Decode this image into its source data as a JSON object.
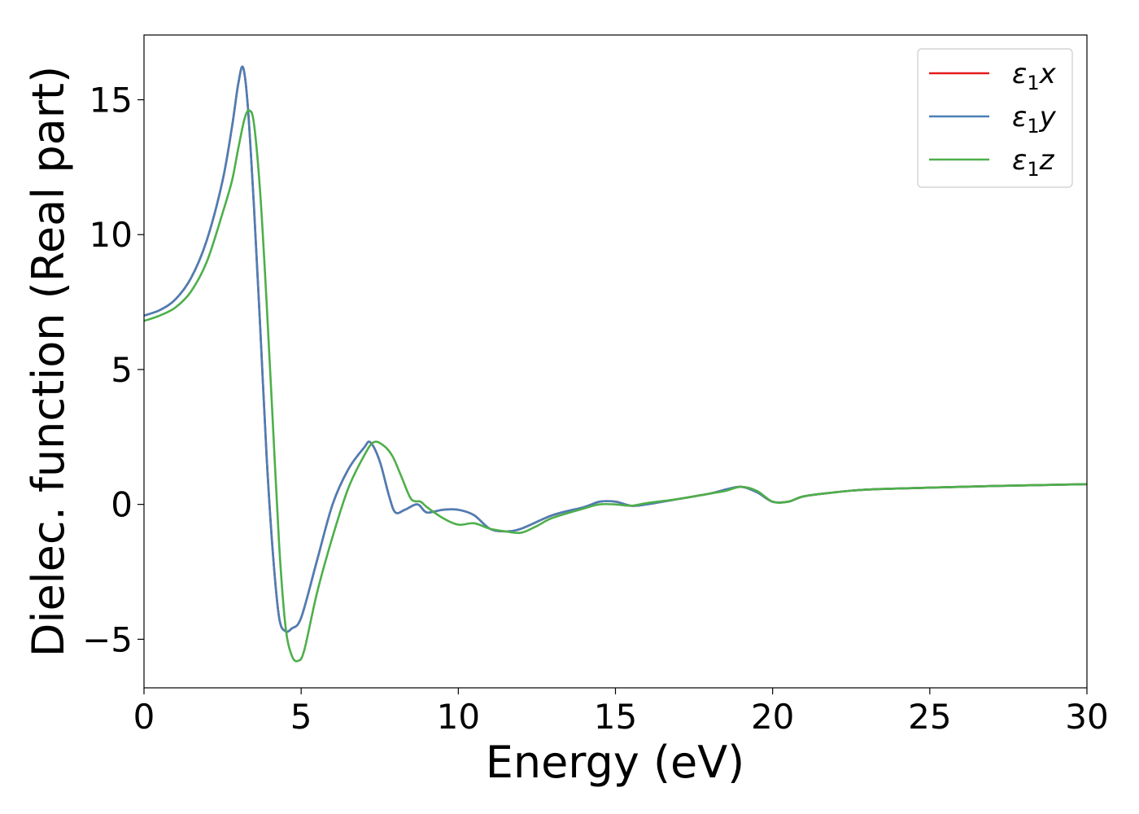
{
  "chart_data": {
    "type": "line",
    "xlabel": "Energy (eV)",
    "ylabel": "Dielec. function (Real part)",
    "xlim": [
      0,
      30
    ],
    "ylim": [
      -6.8,
      17.4
    ],
    "xticks": [
      0,
      5,
      10,
      15,
      20,
      25,
      30
    ],
    "yticks": [
      -5,
      0,
      5,
      10,
      15
    ],
    "xtick_labels": [
      "0",
      "5",
      "10",
      "15",
      "20",
      "25",
      "30"
    ],
    "ytick_labels": [
      "−5",
      "0",
      "5",
      "10",
      "15"
    ],
    "grid": false,
    "legend_position": "top-right",
    "series": [
      {
        "name": "ε1x",
        "legend_base": "ε",
        "legend_sub": "1",
        "legend_suffix": "x",
        "color": "#e41a1c",
        "x": [
          0,
          0.5,
          1.0,
          1.5,
          2.0,
          2.5,
          2.8,
          3.0,
          3.15,
          3.3,
          3.5,
          3.7,
          3.9,
          4.1,
          4.3,
          4.5,
          4.7,
          5.0,
          5.5,
          6.0,
          6.5,
          7.0,
          7.2,
          7.5,
          7.8,
          8.0,
          8.3,
          8.7,
          9.0,
          9.5,
          10.0,
          10.5,
          11.0,
          11.5,
          12.0,
          13.0,
          14.0,
          14.5,
          15.0,
          15.5,
          16.0,
          17.0,
          18.0,
          18.5,
          19.0,
          19.5,
          20.0,
          20.5,
          21.0,
          22.0,
          23.0,
          25.0,
          27.0,
          30.0
        ],
        "y": [
          7.0,
          7.2,
          7.6,
          8.4,
          9.8,
          12.0,
          14.0,
          15.6,
          16.2,
          14.8,
          11.0,
          6.5,
          1.8,
          -1.8,
          -4.2,
          -4.7,
          -4.6,
          -4.2,
          -2.1,
          0.0,
          1.3,
          2.1,
          2.3,
          1.6,
          0.3,
          -0.3,
          -0.2,
          0.0,
          -0.3,
          -0.2,
          -0.2,
          -0.4,
          -0.9,
          -1.0,
          -0.9,
          -0.4,
          -0.1,
          0.1,
          0.1,
          -0.05,
          0.0,
          0.2,
          0.4,
          0.55,
          0.65,
          0.45,
          0.1,
          0.1,
          0.3,
          0.45,
          0.55,
          0.62,
          0.68,
          0.75
        ]
      },
      {
        "name": "ε1y",
        "legend_base": "ε",
        "legend_sub": "1",
        "legend_suffix": "y",
        "color": "#4a7fb6",
        "x": [
          0,
          0.5,
          1.0,
          1.5,
          2.0,
          2.5,
          2.8,
          3.0,
          3.15,
          3.3,
          3.5,
          3.7,
          3.9,
          4.1,
          4.3,
          4.5,
          4.7,
          5.0,
          5.5,
          6.0,
          6.5,
          7.0,
          7.2,
          7.5,
          7.8,
          8.0,
          8.3,
          8.7,
          9.0,
          9.5,
          10.0,
          10.5,
          11.0,
          11.5,
          12.0,
          13.0,
          14.0,
          14.5,
          15.0,
          15.5,
          16.0,
          17.0,
          18.0,
          18.5,
          19.0,
          19.5,
          20.0,
          20.5,
          21.0,
          22.0,
          23.0,
          25.0,
          27.0,
          30.0
        ],
        "y": [
          7.0,
          7.2,
          7.6,
          8.4,
          9.8,
          12.0,
          14.0,
          15.6,
          16.2,
          14.8,
          11.0,
          6.5,
          1.8,
          -1.8,
          -4.2,
          -4.7,
          -4.6,
          -4.2,
          -2.1,
          0.0,
          1.3,
          2.1,
          2.3,
          1.6,
          0.3,
          -0.3,
          -0.2,
          0.0,
          -0.3,
          -0.2,
          -0.2,
          -0.4,
          -0.9,
          -1.0,
          -0.9,
          -0.4,
          -0.1,
          0.1,
          0.1,
          -0.05,
          0.0,
          0.2,
          0.4,
          0.55,
          0.65,
          0.45,
          0.1,
          0.1,
          0.3,
          0.45,
          0.55,
          0.62,
          0.68,
          0.75
        ]
      },
      {
        "name": "ε1z",
        "legend_base": "ε",
        "legend_sub": "1",
        "legend_suffix": "z",
        "color": "#4daf4a",
        "x": [
          0,
          0.5,
          1.0,
          1.5,
          2.0,
          2.5,
          2.8,
          3.0,
          3.2,
          3.35,
          3.5,
          3.7,
          3.9,
          4.1,
          4.3,
          4.5,
          4.7,
          4.9,
          5.1,
          5.5,
          6.0,
          6.5,
          7.0,
          7.3,
          7.6,
          7.9,
          8.2,
          8.5,
          8.8,
          9.0,
          9.5,
          10.0,
          10.5,
          11.0,
          11.5,
          12.0,
          12.5,
          13.0,
          14.0,
          14.5,
          15.0,
          15.5,
          16.0,
          17.0,
          18.0,
          18.5,
          19.0,
          19.5,
          20.0,
          20.5,
          21.0,
          22.0,
          23.0,
          25.0,
          27.0,
          30.0
        ],
        "y": [
          6.8,
          7.0,
          7.3,
          7.9,
          9.0,
          10.8,
          12.0,
          13.2,
          14.3,
          14.6,
          14.1,
          11.5,
          7.5,
          3.0,
          -1.5,
          -4.5,
          -5.6,
          -5.8,
          -5.4,
          -3.3,
          -1.2,
          0.6,
          1.8,
          2.3,
          2.2,
          1.8,
          1.0,
          0.2,
          0.1,
          -0.1,
          -0.5,
          -0.75,
          -0.7,
          -0.9,
          -1.0,
          -1.05,
          -0.8,
          -0.5,
          -0.15,
          0.0,
          0.0,
          -0.05,
          0.05,
          0.2,
          0.4,
          0.5,
          0.65,
          0.5,
          0.1,
          0.1,
          0.3,
          0.45,
          0.55,
          0.62,
          0.68,
          0.75
        ]
      }
    ]
  }
}
